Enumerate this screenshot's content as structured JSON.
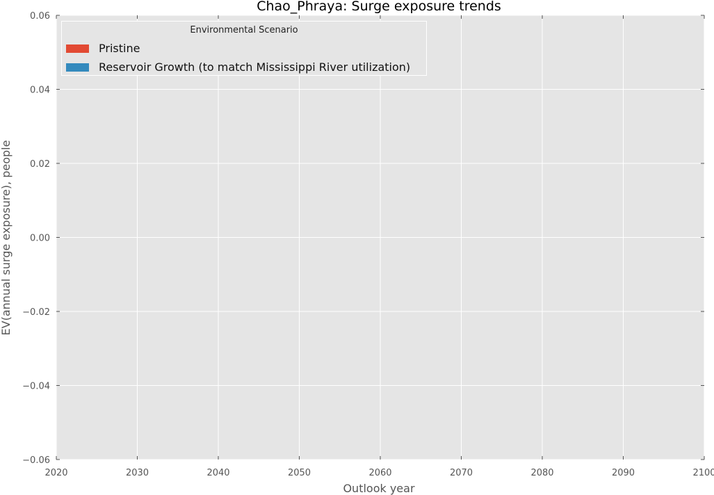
{
  "chart_data": {
    "type": "area",
    "title": "Chao_Phraya: Surge exposure trends",
    "xlabel": "Outlook year",
    "ylabel": "EV(annual surge exposure), people",
    "xlim": [
      2020,
      2100
    ],
    "ylim": [
      -0.06,
      0.06
    ],
    "xticks": [
      "2020",
      "2030",
      "2040",
      "2050",
      "2060",
      "2070",
      "2080",
      "2090",
      "2100"
    ],
    "yticks": [
      "0.06",
      "0.04",
      "0.02",
      "0.00",
      "−0.02",
      "−0.04",
      "−0.06"
    ],
    "grid": true,
    "legend": {
      "title": "Environmental Scenario",
      "placement": "top-left"
    },
    "series": [
      {
        "name": "Pristine",
        "color": "#e24a33",
        "x": [],
        "values": []
      },
      {
        "name": "Reservoir Growth (to match Mississippi River utilization)",
        "color": "#348abd",
        "x": [],
        "values": []
      }
    ]
  }
}
